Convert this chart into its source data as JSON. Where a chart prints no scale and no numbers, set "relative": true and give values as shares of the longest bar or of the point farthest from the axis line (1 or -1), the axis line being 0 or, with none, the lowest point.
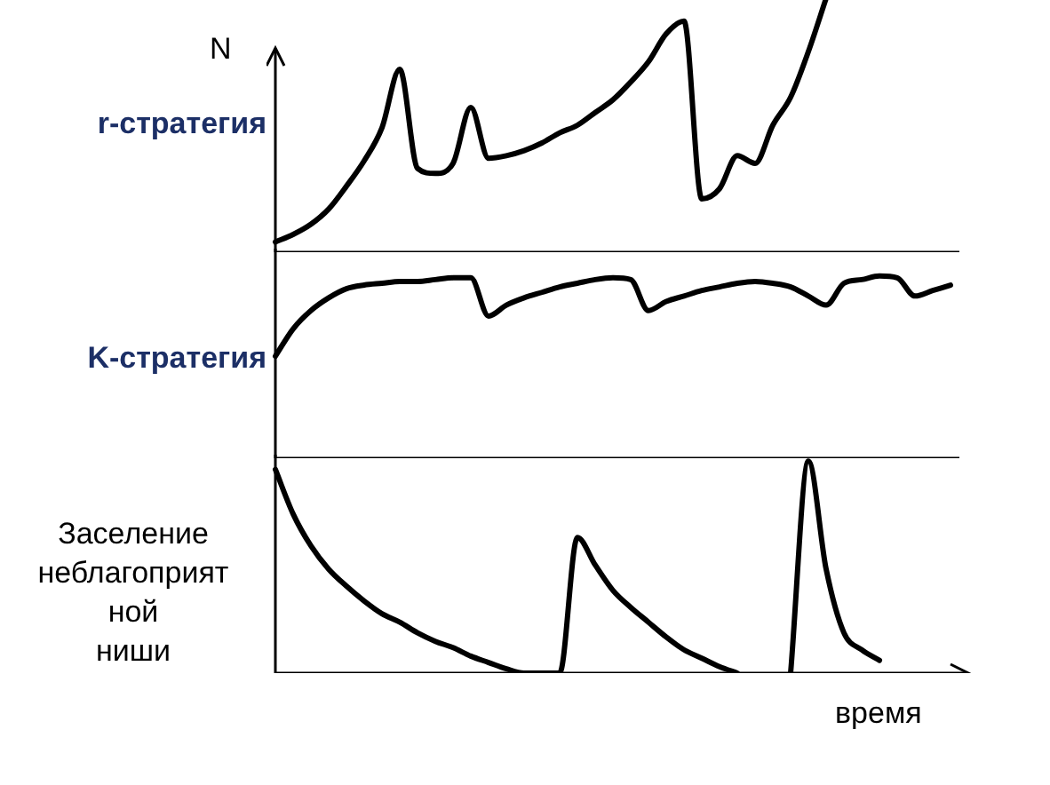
{
  "chart_data": [
    {
      "type": "line",
      "title": "r-стратегия",
      "ylabel": "N",
      "relative": true,
      "tick_labels": false,
      "marker": "none",
      "categories": [
        null,
        null,
        null,
        null,
        null,
        null,
        null,
        null,
        null,
        null,
        null,
        null,
        null,
        null,
        null,
        null,
        null,
        null,
        null,
        null,
        null,
        null,
        null,
        null,
        null,
        null,
        null,
        null,
        null,
        null,
        null,
        null,
        null,
        null,
        null,
        null,
        null,
        null,
        null
      ],
      "series": [
        {
          "color": "#000000",
          "values": [
            0.04,
            0.07,
            0.11,
            0.17,
            0.26,
            0.36,
            0.49,
            0.72,
            0.33,
            0.31,
            0.35,
            0.57,
            0.37,
            0.38,
            0.4,
            0.43,
            0.47,
            0.5,
            0.55,
            0.6,
            0.67,
            0.75,
            0.86,
            0.91,
            0.21,
            0.25,
            0.38,
            0.35,
            0.5,
            0.61,
            0.79,
            1,
            null,
            null,
            null,
            null,
            null,
            null,
            null
          ]
        }
      ]
    },
    {
      "type": "line",
      "title": "K-стратегия",
      "relative": true,
      "tick_labels": false,
      "marker": "none",
      "categories": [
        null,
        null,
        null,
        null,
        null,
        null,
        null,
        null,
        null,
        null,
        null,
        null,
        null,
        null,
        null,
        null,
        null,
        null,
        null,
        null,
        null,
        null,
        null,
        null,
        null,
        null,
        null,
        null,
        null,
        null,
        null,
        null,
        null,
        null,
        null,
        null,
        null,
        null,
        null
      ],
      "series": [
        {
          "color": "#000000",
          "values": [
            0.56,
            0.71,
            0.81,
            0.88,
            0.93,
            0.95,
            0.96,
            0.97,
            0.97,
            0.98,
            0.99,
            0.99,
            0.78,
            0.84,
            0.88,
            0.91,
            0.94,
            0.96,
            0.98,
            0.99,
            0.98,
            0.81,
            0.86,
            0.89,
            0.92,
            0.94,
            0.96,
            0.97,
            0.96,
            0.94,
            0.89,
            0.84,
            0.96,
            0.98,
            1,
            0.99,
            0.89,
            0.92,
            0.95
          ]
        }
      ]
    },
    {
      "type": "line",
      "title": "Заселение\nнеблагоприят\nной\nниши",
      "xlabel": "время",
      "relative": true,
      "tick_labels": false,
      "marker": "none",
      "categories": [
        null,
        null,
        null,
        null,
        null,
        null,
        null,
        null,
        null,
        null,
        null,
        null,
        null,
        null,
        null,
        null,
        null,
        null,
        null,
        null,
        null,
        null,
        null,
        null,
        null,
        null,
        null,
        null,
        null,
        null,
        null,
        null,
        null,
        null,
        null,
        null,
        null,
        null,
        null
      ],
      "series": [
        {
          "color": "#000000",
          "values": [
            0.96,
            0.75,
            0.6,
            0.49,
            0.41,
            0.34,
            0.28,
            0.24,
            0.19,
            0.15,
            0.12,
            0.08,
            0.05,
            0.02,
            0,
            0,
            0,
            0.64,
            0.51,
            0.39,
            0.31,
            0.24,
            0.17,
            0.11,
            0.07,
            0.03,
            0,
            null,
            null,
            0,
            1,
            0.49,
            0.19,
            0.11,
            0.06,
            null,
            null,
            null,
            null
          ]
        }
      ]
    }
  ]
}
